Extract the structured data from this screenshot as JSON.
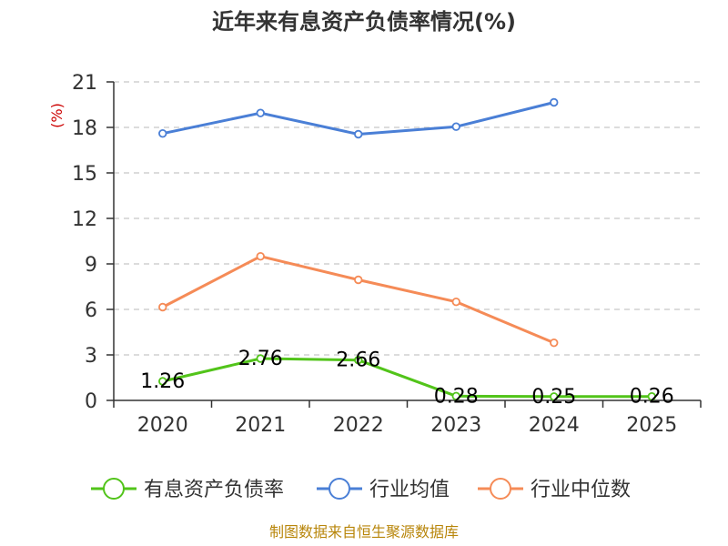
{
  "chart_data": {
    "type": "line",
    "title": "近年来有息资产负债率情况(%)",
    "ylabel": "(%)",
    "xlabel": "",
    "categories": [
      "2020",
      "2021",
      "2022",
      "2023",
      "2024",
      "2025"
    ],
    "ylim": [
      0,
      21
    ],
    "yticks": [
      0,
      3,
      6,
      9,
      12,
      15,
      18,
      21
    ],
    "grid": true,
    "legend_position": "bottom",
    "series": [
      {
        "name": "有息资产负债率",
        "color": "#52c41a",
        "values": [
          1.26,
          2.76,
          2.66,
          0.28,
          0.25,
          0.26
        ],
        "data_labels": [
          "1.26",
          "2.76",
          "2.66",
          "0.28",
          "0.25",
          "0.26"
        ]
      },
      {
        "name": "行业均值",
        "color": "#4a7fd6",
        "values": [
          17.6,
          18.95,
          17.55,
          18.05,
          19.65,
          null
        ]
      },
      {
        "name": "行业中位数",
        "color": "#f58b57",
        "values": [
          6.15,
          9.5,
          7.95,
          6.5,
          3.8,
          null
        ]
      }
    ]
  },
  "footer": {
    "source": "制图数据来自恒生聚源数据库"
  }
}
